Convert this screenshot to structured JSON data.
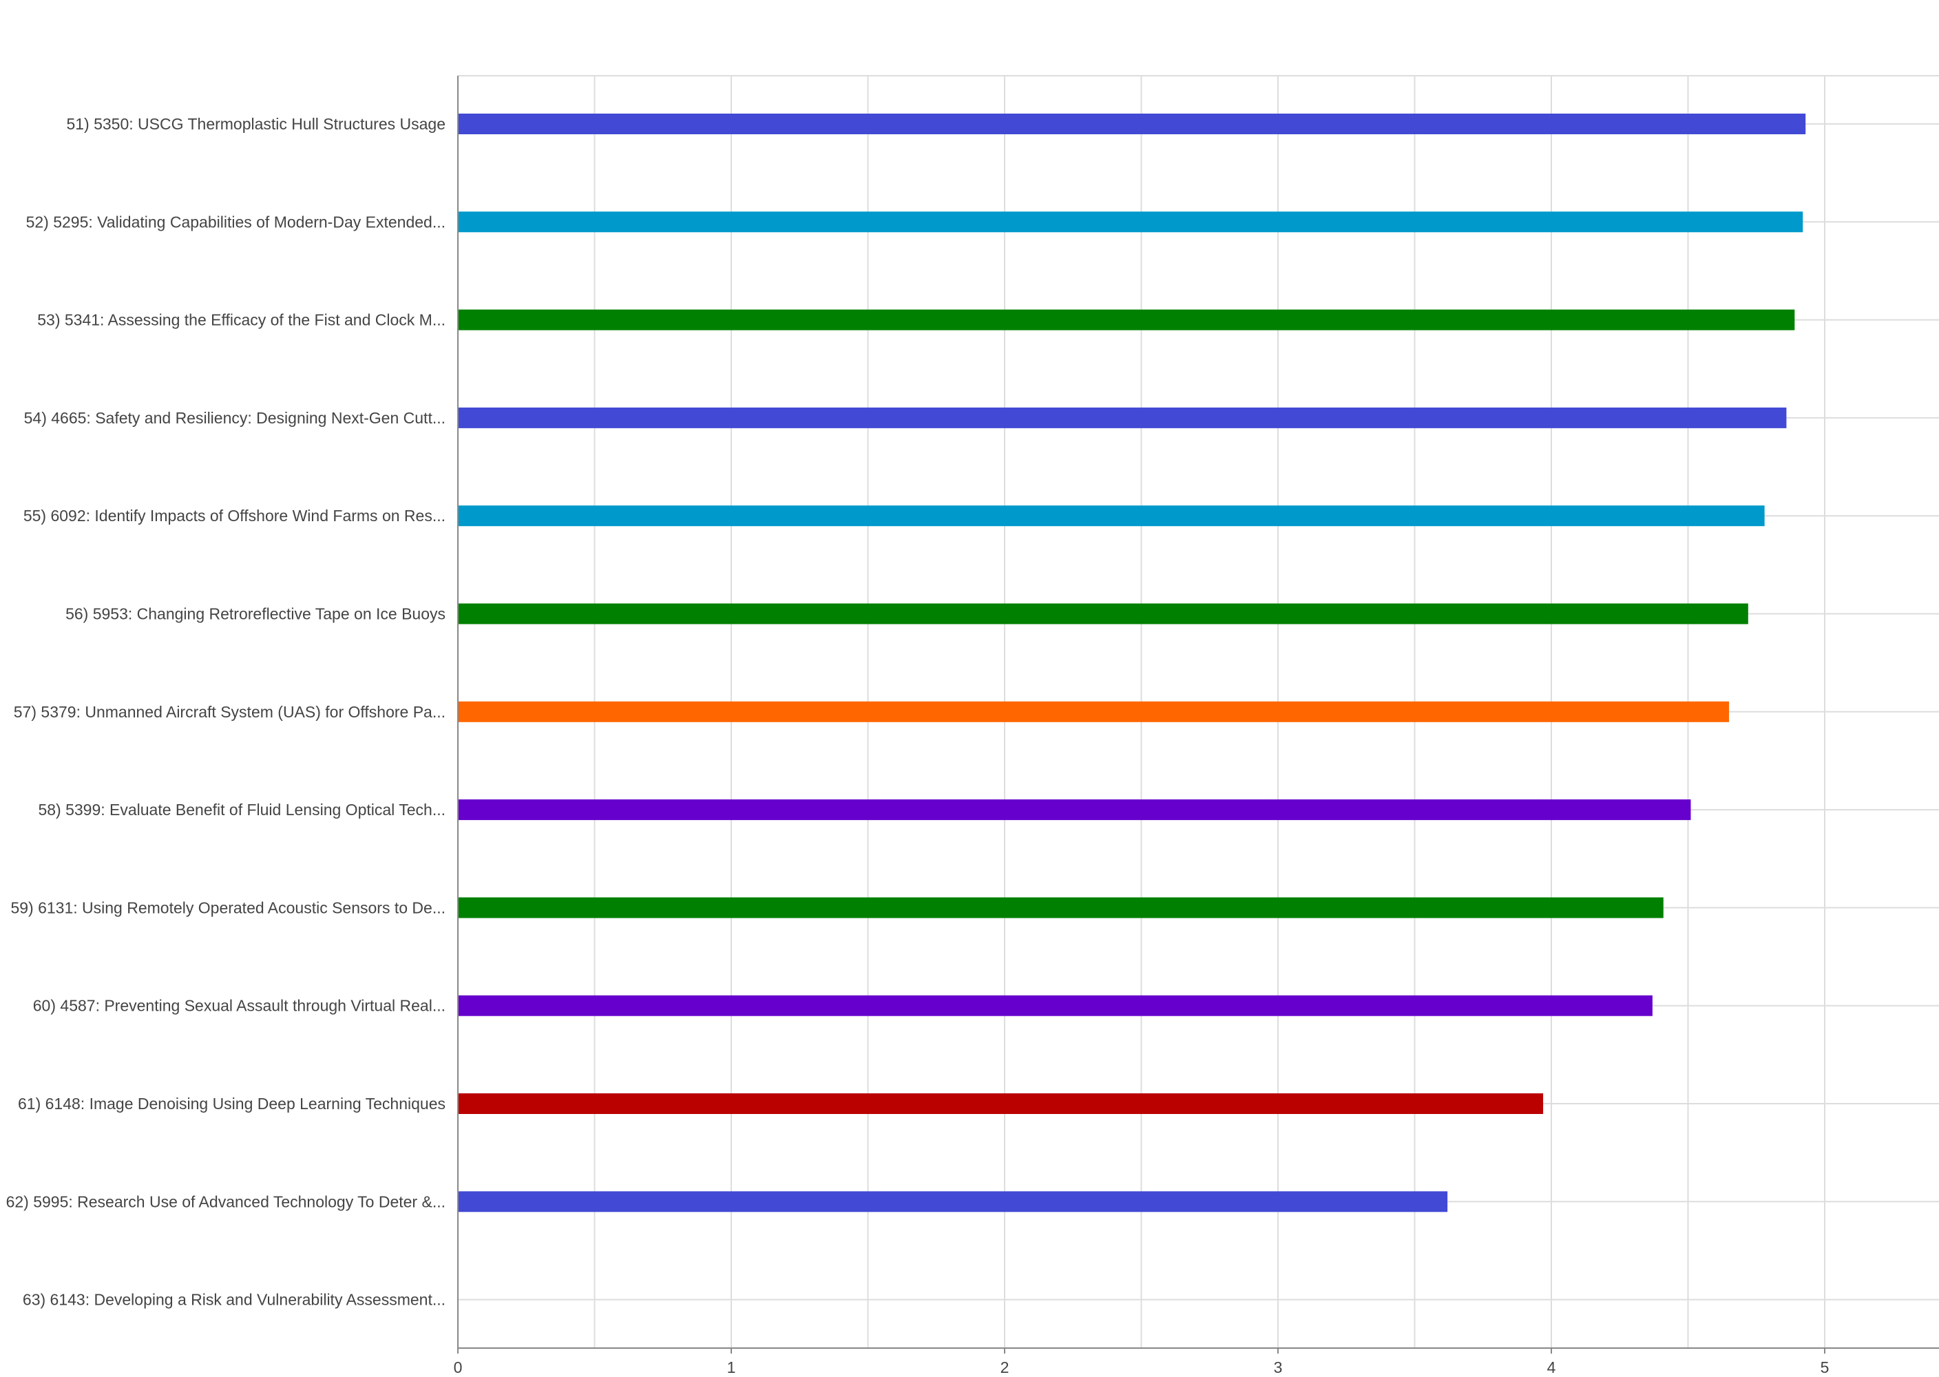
{
  "chart_data": {
    "type": "bar",
    "orientation": "horizontal",
    "title": "",
    "xlabel": "",
    "ylabel": "",
    "xlim": [
      0,
      5.4
    ],
    "x_ticks": [
      "0",
      "1",
      "2",
      "3",
      "4",
      "5"
    ],
    "grid": true,
    "legend": "none",
    "categories": [
      "51) 5350: USCG Thermoplastic Hull Structures Usage",
      "52) 5295: Validating Capabilities of Modern-Day Extended...",
      "53) 5341: Assessing the Efficacy of the Fist and Clock M...",
      "54) 4665: Safety and Resiliency: Designing Next-Gen Cutt...",
      "55) 6092: Identify Impacts of Offshore Wind Farms on Res...",
      "56) 5953: Changing Retroreflective Tape on Ice Buoys",
      "57) 5379: Unmanned Aircraft System (UAS) for Offshore Pa...",
      "58) 5399: Evaluate Benefit of Fluid Lensing Optical Tech...",
      "59) 6131: Using Remotely Operated Acoustic Sensors to De...",
      "60) 4587: Preventing Sexual Assault through Virtual Real...",
      "61) 6148: Image Denoising Using Deep Learning Techniques",
      "62) 5995: Research Use of Advanced Technology To Deter &...",
      "63) 6143: Developing a Risk and Vulnerability Assessment..."
    ],
    "values": [
      4.93,
      4.92,
      4.89,
      4.86,
      4.78,
      4.72,
      4.65,
      4.51,
      4.41,
      4.37,
      3.97,
      3.62,
      0
    ],
    "colors": [
      "#4249d4",
      "#0099cc",
      "#008000",
      "#4249d4",
      "#0099cc",
      "#008000",
      "#ff6600",
      "#6600cc",
      "#008000",
      "#6600cc",
      "#bb0000",
      "#4249d4",
      "#4249d4"
    ]
  }
}
